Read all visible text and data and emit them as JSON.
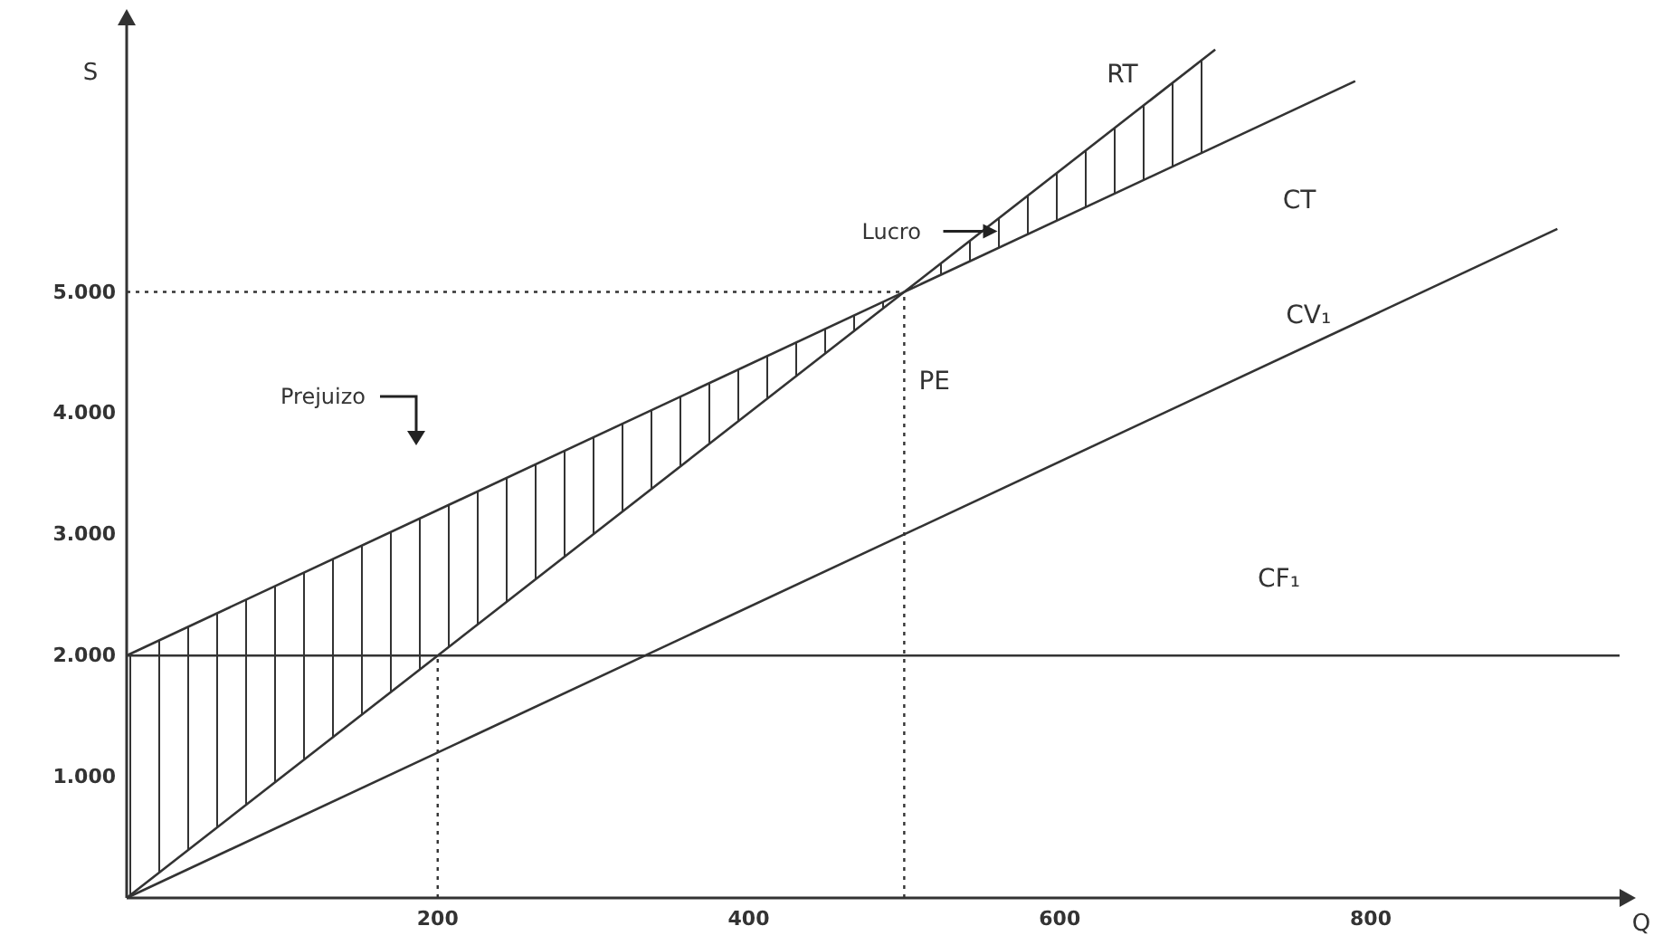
{
  "chart_data": {
    "type": "line",
    "xlabel": "Q",
    "ylabel": "S",
    "xlim": [
      0,
      960
    ],
    "ylim": [
      0,
      7200
    ],
    "xticks": [
      200,
      400,
      600,
      800
    ],
    "yticks": [
      {
        "value": 1000,
        "label": "1.000"
      },
      {
        "value": 2000,
        "label": "2.000"
      },
      {
        "value": 3000,
        "label": "3.000"
      },
      {
        "value": 4000,
        "label": "4.000"
      },
      {
        "value": 5000,
        "label": "5.000"
      }
    ],
    "grid": false,
    "legend": false,
    "marker": "none",
    "line_style": "solid",
    "series": [
      {
        "name": "RT",
        "color": "#333333",
        "x": [
          0,
          500,
          700
        ],
        "values": [
          0,
          5000,
          7000
        ],
        "lower": [
          0,
          5000,
          6200
        ],
        "upper": [
          2000,
          5000,
          7000
        ]
      },
      {
        "name": "CT",
        "color": "#333333",
        "x": [
          0,
          790
        ],
        "values": [
          2000,
          6740
        ]
      },
      {
        "name": "CV₁",
        "color": "#333333",
        "x": [
          0,
          920
        ],
        "values": [
          0,
          5520
        ]
      },
      {
        "name": "CF₁",
        "color": "#333333",
        "x": [
          0,
          960
        ],
        "values": [
          2000,
          2000
        ]
      }
    ],
    "ref_lines": [
      {
        "axis": "x",
        "value": 200,
        "color": "#333333",
        "line_style": "dotted"
      },
      {
        "axis": "x",
        "value": 500,
        "color": "#333333",
        "line_style": "dotted"
      },
      {
        "axis": "y",
        "value": 5000,
        "color": "#333333",
        "line_style": "dotted"
      }
    ],
    "annotations": [
      {
        "text": "PE",
        "x": 500,
        "y": 4500
      },
      {
        "text": "Lucro",
        "x": 560,
        "y": 5500
      },
      "Prejuizo"
    ]
  }
}
